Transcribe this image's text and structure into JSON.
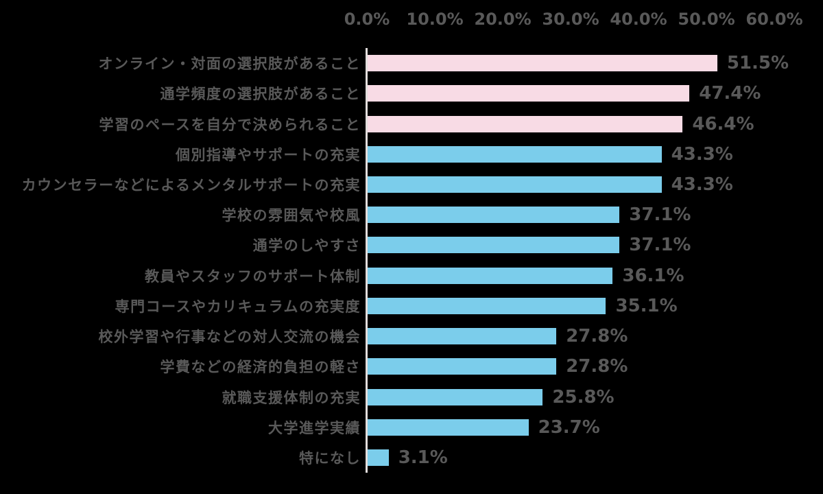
{
  "chart_data": {
    "type": "bar",
    "orientation": "horizontal",
    "title": "",
    "xlabel": "",
    "ylabel": "",
    "grid": false,
    "legend": "none",
    "background_color": "#000000",
    "text_color": "#595959",
    "axis_line_color": "#e3dedd",
    "x_axis": {
      "position": "top",
      "min": 0,
      "max": 60,
      "tick_step": 10,
      "ticks": [
        "0.0%",
        "10.0%",
        "20.0%",
        "30.0%",
        "40.0%",
        "50.0%",
        "60.0%"
      ]
    },
    "bar_colors": {
      "pink": "#f8dbe5",
      "blue": "#7bcdeb"
    },
    "categories": [
      "オンライン・対面の選択肢があること",
      "通学頻度の選択肢があること",
      "学習のペースを自分で決められること",
      "個別指導やサポートの充実",
      "カウンセラーなどによるメンタルサポートの充実",
      "学校の雰囲気や校風",
      "通学のしやすさ",
      "教員やスタッフのサポート体制",
      "専門コースやカリキュラムの充実度",
      "校外学習や行事などの対人交流の機会",
      "学費などの経済的負担の軽さ",
      "就職支援体制の充実",
      "大学進学実績",
      "特になし"
    ],
    "values": [
      51.5,
      47.4,
      46.4,
      43.3,
      43.3,
      37.1,
      37.1,
      36.1,
      35.1,
      27.8,
      27.8,
      25.8,
      23.7,
      3.1
    ],
    "value_labels": [
      "51.5%",
      "47.4%",
      "46.4%",
      "43.3%",
      "43.3%",
      "37.1%",
      "37.1%",
      "36.1%",
      "35.1%",
      "27.8%",
      "27.8%",
      "25.8%",
      "23.7%",
      "3.1%"
    ],
    "bar_color_keys": [
      "pink",
      "pink",
      "pink",
      "blue",
      "blue",
      "blue",
      "blue",
      "blue",
      "blue",
      "blue",
      "blue",
      "blue",
      "blue",
      "blue"
    ]
  }
}
